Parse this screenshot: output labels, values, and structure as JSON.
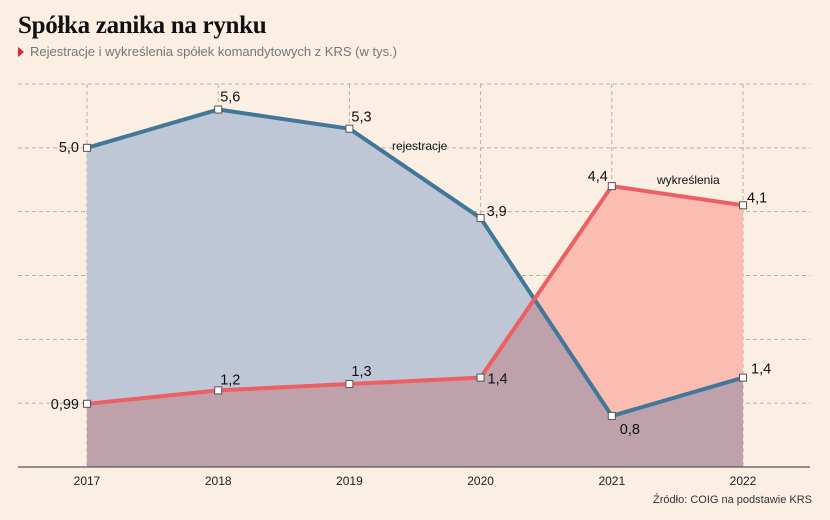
{
  "header": {
    "title": "Spółka zanika na rynku",
    "subtitle": "Rejestracje i wykreślenia spółek komandytowych z KRS (w tys.)"
  },
  "source": "Źródło: COIG na podstawie KRS",
  "colors": {
    "background": "#fbeee3",
    "rejestracje_line": "#41789a",
    "rejestracje_fill": "#bfc6d6",
    "wykreslenia_line": "#ec5f63",
    "wykreslenia_fill": "#fbbdb2",
    "overlap_fill": "#bfa1ac",
    "grid": "#b8b0a8"
  },
  "chart_data": {
    "type": "area",
    "title": "Spółka zanika na rynku",
    "subtitle": "Rejestracje i wykreślenia spółek komandytowych z KRS (w tys.)",
    "x": [
      "2017",
      "2018",
      "2019",
      "2020",
      "2021",
      "2022"
    ],
    "series": [
      {
        "name": "rejestracje",
        "values": [
          5.0,
          5.6,
          5.3,
          3.9,
          0.8,
          1.4
        ],
        "labels": [
          "5,0",
          "5,6",
          "5,3",
          "3,9",
          "0,8",
          "1,4"
        ]
      },
      {
        "name": "wykreślenia",
        "values": [
          0.99,
          1.2,
          1.3,
          1.4,
          4.4,
          4.1
        ],
        "labels": [
          "0,99",
          "1,2",
          "1,3",
          "1,4",
          "4,4",
          "4,1"
        ]
      }
    ],
    "ylim": [
      0,
      6
    ],
    "grid": true,
    "grid_style": "dashed",
    "legend": "inline labels"
  }
}
